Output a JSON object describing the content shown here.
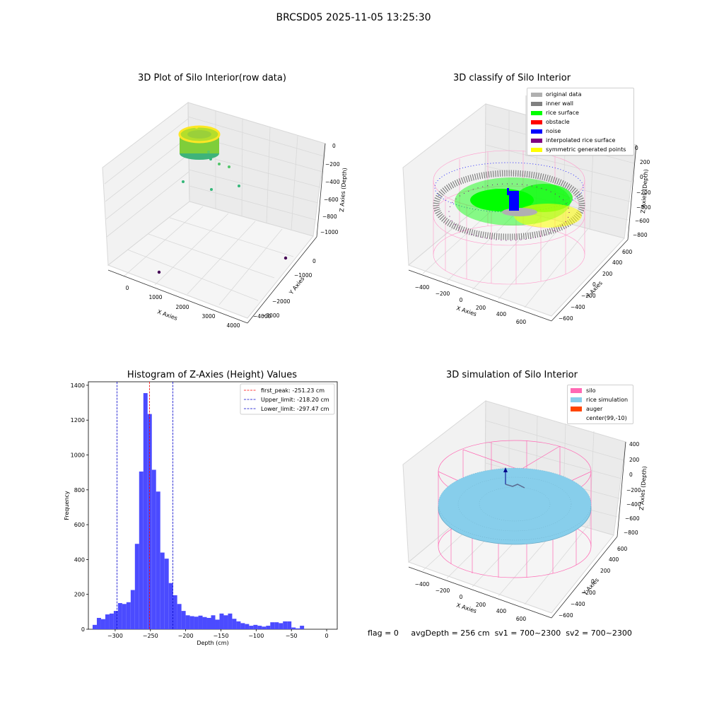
{
  "figure": {
    "suptitle": "BRCSD05 2025-11-05 13:25:30",
    "status": {
      "flag": "flag = 0",
      "avg": "avgDepth = 256 cm",
      "sv1": "sv1 = 700~2300",
      "sv2": "sv2 = 700~2300"
    }
  },
  "colors": {
    "original": "#b0b0b0",
    "inner_wall": "#808080",
    "rice_surface": "#00ff00",
    "obstacle": "#ff0000",
    "noise": "#0000ff",
    "interp": "#800080",
    "symmetric": "#ffff00",
    "silo": "#ff69b4",
    "rice_sim": "#87ceeb",
    "auger": "#ff4500",
    "hist_bar": "#4b4bff"
  },
  "chart_data": [
    {
      "type": "scatter",
      "subtype": "3d",
      "title": "3D Plot of Silo Interior(row data)",
      "xlabel": "X Axies",
      "ylabel": "Y Axies",
      "zlabel": "Z Axies (Depth)",
      "xticks": [
        "0",
        "1000",
        "2000",
        "3000",
        "4000"
      ],
      "yticks": [
        "0",
        "−1000",
        "−2000",
        "−3000",
        "−4000"
      ],
      "zticks": [
        "0",
        "−200",
        "−400",
        "−600",
        "−800",
        "−1000"
      ]
    },
    {
      "type": "scatter",
      "subtype": "3d",
      "title": "3D classify of Silo Interior",
      "xlabel": "X Axies",
      "ylabel": "Y Axies",
      "zlabel": "Z Axies (Depth)",
      "xticks": [
        "−400",
        "−200",
        "0",
        "200",
        "400",
        "600"
      ],
      "yticks": [
        "−600",
        "−400",
        "−200",
        "0",
        "200",
        "400",
        "600"
      ],
      "zticks": [
        "200",
        "0",
        "−200",
        "−400",
        "−600",
        "−800"
      ],
      "ztop_partial": "0",
      "legend": [
        "original data",
        "inner wall",
        "rice surface",
        "obstacle",
        "noise",
        "interpolated rice surface",
        "symmetric generated points"
      ]
    },
    {
      "type": "bar",
      "subtype": "histogram",
      "title": "Histogram of Z-Axies (Height) Values",
      "xlabel": "Depth (cm)",
      "ylabel": "Frequency",
      "xlim": [
        -338,
        15
      ],
      "ylim": [
        0,
        1420
      ],
      "bin_width": 6,
      "xticks": [
        -300,
        -250,
        -200,
        -150,
        -100,
        -50,
        0
      ],
      "xtick_labels": [
        "−300",
        "−250",
        "−200",
        "−150",
        "−100",
        "−50",
        "0"
      ],
      "yticks": [
        0,
        200,
        400,
        600,
        800,
        1000,
        1200,
        1400
      ],
      "ytick_labels": [
        "0",
        "200",
        "400",
        "600",
        "800",
        "1000",
        "1200",
        "1400"
      ],
      "bins_x": [
        -329,
        -323,
        -317,
        -311,
        -305,
        -299,
        -293,
        -287,
        -281,
        -275,
        -269,
        -263,
        -257,
        -251,
        -245,
        -239,
        -233,
        -227,
        -221,
        -215,
        -209,
        -203,
        -197,
        -191,
        -185,
        -179,
        -173,
        -167,
        -161,
        -155,
        -149,
        -143,
        -137,
        -131,
        -125,
        -119,
        -113,
        -107,
        -101,
        -95,
        -89,
        -83,
        -77,
        -71,
        -65,
        -59,
        -53,
        -47,
        -41,
        -35,
        -29,
        -23,
        -17,
        -11,
        -5,
        -1
      ],
      "values": [
        25,
        65,
        58,
        85,
        90,
        105,
        150,
        145,
        155,
        225,
        490,
        905,
        1355,
        1235,
        915,
        790,
        440,
        405,
        265,
        195,
        145,
        105,
        80,
        75,
        72,
        78,
        70,
        65,
        80,
        55,
        90,
        80,
        90,
        60,
        45,
        35,
        30,
        20,
        25,
        20,
        15,
        20,
        40,
        40,
        35,
        45,
        45,
        10,
        5,
        20,
        0,
        0,
        0,
        0,
        0,
        0
      ],
      "vlines": [
        {
          "label": "first_peak: -251.23 cm",
          "x": -251.23,
          "color": "#ff0000"
        },
        {
          "label": "Upper_limit: -218.20 cm",
          "x": -218.2,
          "color": "#0000cc"
        },
        {
          "label": "Lower_limit: -297.47 cm",
          "x": -297.47,
          "color": "#0000cc"
        }
      ]
    },
    {
      "type": "scatter",
      "subtype": "3d",
      "title": "3D simulation of Silo Interior",
      "xlabel": "X Axies",
      "ylabel": "Y Axies",
      "zlabel": "Z Axies (Depth)",
      "xticks": [
        "−400",
        "−200",
        "0",
        "200",
        "400",
        "600"
      ],
      "yticks": [
        "−600",
        "−400",
        "−200",
        "0",
        "200",
        "400",
        "600"
      ],
      "zticks": [
        "400",
        "200",
        "0",
        "−200",
        "−400",
        "−600",
        "−800"
      ],
      "legend": [
        "silo",
        "rice simulation",
        "auger",
        "center(99,-10)"
      ]
    }
  ]
}
